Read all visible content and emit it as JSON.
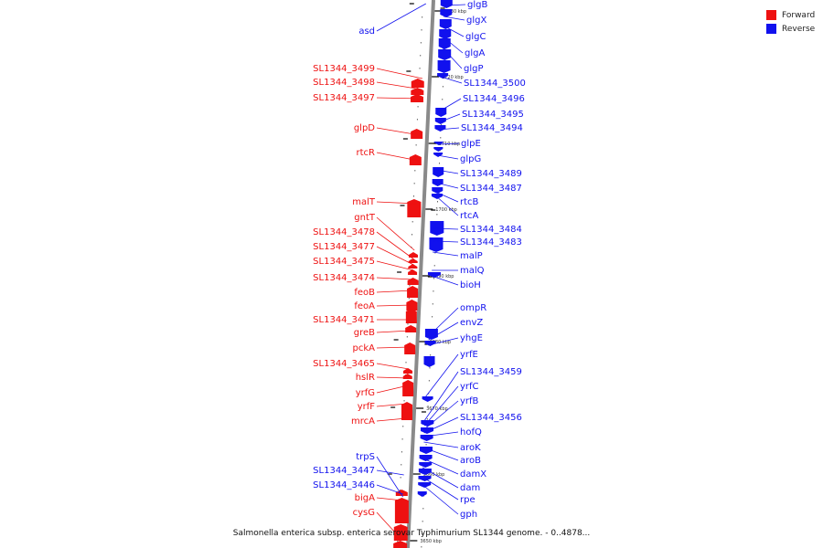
{
  "title": "Salmonella enterica subsp. enterica serovar Typhimurium SL1344 genome. - 0..4878...",
  "legend": [
    {
      "label": "Forward",
      "color": "#ee1111"
    },
    {
      "label": "Reverse",
      "color": "#1111ee"
    }
  ],
  "colors": {
    "forward": "#ee1111",
    "reverse": "#1111ee",
    "backbone": "#8a8a8a"
  },
  "ticks": [
    "1730 kbp",
    "1720 kbp",
    "1710 kbp",
    "1700 kbp",
    "3690 kbp",
    "3680 kbp",
    "3670 kbp",
    "3660 kbp",
    "3650 kbp"
  ],
  "forward_genes": [
    "asd",
    "SL1344_3499",
    "SL1344_3498",
    "SL1344_3497",
    "glpD",
    "rtcR",
    "malT",
    "gntT",
    "SL1344_3478",
    "SL1344_3477",
    "SL1344_3475",
    "SL1344_3474",
    "feoB",
    "feoA",
    "SL1344_3471",
    "greB",
    "pckA",
    "SL1344_3465",
    "hslR",
    "yrfG",
    "yrfF",
    "mrcA",
    "trpS",
    "SL1344_3447",
    "SL1344_3446",
    "bigA",
    "cysG"
  ],
  "reverse_genes": [
    "glgB",
    "glgX",
    "glgC",
    "glgA",
    "glgP",
    "SL1344_3500",
    "SL1344_3496",
    "SL1344_3495",
    "SL1344_3494",
    "glpE",
    "glpG",
    "SL1344_3489",
    "SL1344_3487",
    "rtcB",
    "rtcA",
    "SL1344_3484",
    "SL1344_3483",
    "malP",
    "malQ",
    "bioH",
    "ompR",
    "envZ",
    "yhgE",
    "yrfE",
    "SL1344_3459",
    "yrfC",
    "yrfB",
    "SL1344_3456",
    "hofQ",
    "aroK",
    "aroB",
    "damX",
    "dam",
    "rpe",
    "gph"
  ]
}
